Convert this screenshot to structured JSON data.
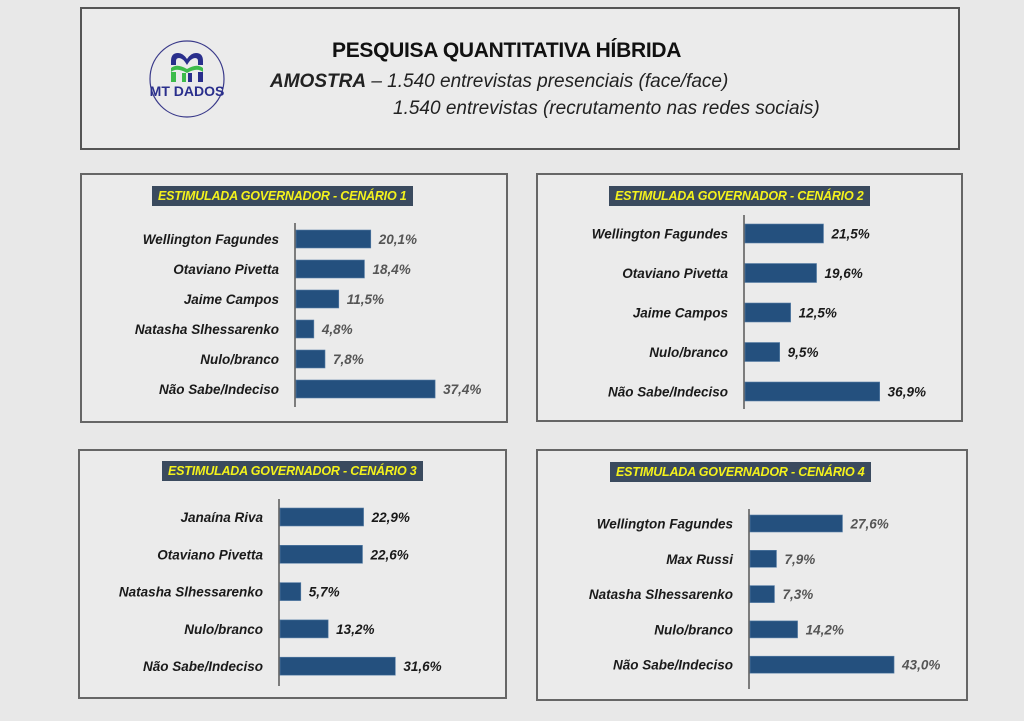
{
  "header": {
    "logo_text": "MT DADOS",
    "title": "PESQUISA QUANTITATIVA HÍBRIDA",
    "sample_label": "AMOSTRA",
    "sample_line1": " – 1.540 entrevistas presenciais (face/face)",
    "sample_line2": "1.540 entrevistas (recrutamento  nas redes sociais)"
  },
  "colors": {
    "bar": "#24507e",
    "title_bg": "#3a4a5e",
    "title_text": "#f4f21c",
    "value_grey": "#555555",
    "value_dark": "#1a1a1a"
  },
  "chart_data": [
    {
      "type": "bar",
      "orientation": "horizontal",
      "title": "ESTIMULADA GOVERNADOR - CENÁRIO 1",
      "categories": [
        "Wellington Fagundes",
        "Otaviano Pivetta",
        "Jaime Campos",
        "Natasha Slhessarenko",
        "Nulo/branco",
        "Não Sabe/Indeciso"
      ],
      "values": [
        20.1,
        18.4,
        11.5,
        4.8,
        7.8,
        37.4
      ],
      "labels": [
        "20,1%",
        "18,4%",
        "11,5%",
        "4,8%",
        "7,8%",
        "37,4%"
      ],
      "unit": "%"
    },
    {
      "type": "bar",
      "orientation": "horizontal",
      "title": "ESTIMULADA GOVERNADOR - CENÁRIO 2",
      "categories": [
        "Wellington Fagundes",
        "Otaviano Pivetta",
        "Jaime Campos",
        "Nulo/branco",
        "Não Sabe/Indeciso"
      ],
      "values": [
        21.5,
        19.6,
        12.5,
        9.5,
        36.9
      ],
      "labels": [
        "21,5%",
        "19,6%",
        "12,5%",
        "9,5%",
        "36,9%"
      ],
      "unit": "%"
    },
    {
      "type": "bar",
      "orientation": "horizontal",
      "title": "ESTIMULADA GOVERNADOR - CENÁRIO 3",
      "categories": [
        "Janaína Riva",
        "Otaviano Pivetta",
        "Natasha Slhessarenko",
        "Nulo/branco",
        "Não Sabe/Indeciso"
      ],
      "values": [
        22.9,
        22.6,
        5.7,
        13.2,
        31.6
      ],
      "labels": [
        "22,9%",
        "22,6%",
        "5,7%",
        "13,2%",
        "31,6%"
      ],
      "unit": "%"
    },
    {
      "type": "bar",
      "orientation": "horizontal",
      "title": "ESTIMULADA GOVERNADOR - CENÁRIO 4",
      "categories": [
        "Wellington Fagundes",
        "Max Russi",
        "Natasha Slhessarenko",
        "Nulo/branco",
        "Não Sabe/Indeciso"
      ],
      "values": [
        27.6,
        7.9,
        7.3,
        14.2,
        43.0
      ],
      "labels": [
        "27,6%",
        "7,9%",
        "7,3%",
        "14,2%",
        "43,0%"
      ],
      "unit": "%"
    }
  ]
}
